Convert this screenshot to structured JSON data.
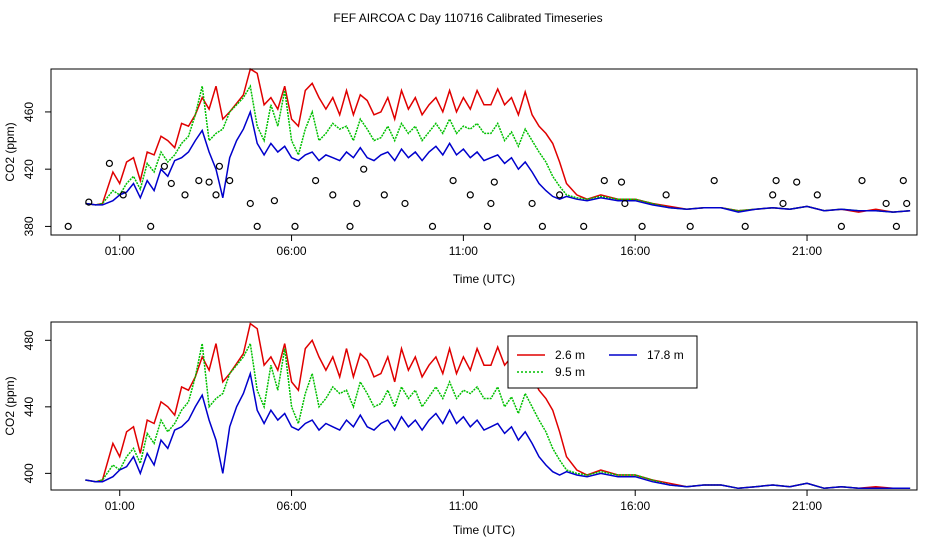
{
  "title": "FEF AIRCOA C  Day 110716  Calibrated Timeseries",
  "colors": {
    "red": "#e00000",
    "green": "#00c000",
    "blue": "#0000cc",
    "frame": "#000000"
  },
  "chart_data": [
    {
      "type": "line",
      "xlabel": "Time (UTC)",
      "ylabel": "CO2 (ppm)",
      "xlim": [
        -1.0,
        24.2
      ],
      "ylim": [
        374,
        490
      ],
      "xticks": [
        1,
        6,
        11,
        16,
        21
      ],
      "xtick_labels": [
        "01:00",
        "06:00",
        "11:00",
        "16:00",
        "21:00"
      ],
      "yticks": [
        380,
        420,
        460
      ],
      "ytick_labels": [
        "380",
        "420",
        "460"
      ],
      "series": [
        {
          "name": "2.6 m",
          "color": "#e00000",
          "x": [
            0.0,
            0.3,
            0.5,
            0.8,
            1.0,
            1.2,
            1.4,
            1.6,
            1.8,
            2.0,
            2.2,
            2.4,
            2.6,
            2.8,
            3.0,
            3.2,
            3.4,
            3.6,
            3.8,
            4.0,
            4.2,
            4.4,
            4.6,
            4.8,
            5.0,
            5.2,
            5.4,
            5.6,
            5.8,
            6.0,
            6.2,
            6.4,
            6.6,
            6.8,
            7.0,
            7.2,
            7.4,
            7.6,
            7.8,
            8.0,
            8.2,
            8.4,
            8.6,
            8.8,
            9.0,
            9.2,
            9.4,
            9.6,
            9.8,
            10.0,
            10.2,
            10.4,
            10.6,
            10.8,
            11.0,
            11.2,
            11.4,
            11.6,
            11.8,
            12.0,
            12.2,
            12.4,
            12.6,
            12.8,
            13.0,
            13.2,
            13.4,
            13.6,
            13.8,
            14.0,
            14.3,
            14.6,
            15.0,
            15.5,
            16.0,
            16.5,
            17.0,
            17.5,
            18.0,
            18.5,
            19.0,
            19.5,
            20.0,
            20.5,
            21.0,
            21.5,
            22.0,
            22.5,
            23.0,
            23.5,
            24.0
          ],
          "y": [
            396,
            395,
            396,
            418,
            410,
            425,
            428,
            412,
            432,
            430,
            443,
            440,
            435,
            452,
            450,
            458,
            470,
            462,
            478,
            455,
            460,
            466,
            472,
            490,
            487,
            465,
            470,
            462,
            478,
            455,
            450,
            475,
            480,
            470,
            462,
            470,
            458,
            475,
            458,
            472,
            468,
            458,
            460,
            470,
            455,
            475,
            462,
            470,
            458,
            465,
            470,
            460,
            475,
            460,
            470,
            462,
            475,
            465,
            465,
            476,
            465,
            470,
            458,
            474,
            458,
            450,
            445,
            438,
            425,
            410,
            402,
            399,
            402,
            399,
            399,
            396,
            394,
            392,
            393,
            393,
            391,
            392,
            393,
            392,
            394,
            391,
            392,
            390,
            392,
            390,
            391
          ]
        },
        {
          "name": "9.5 m",
          "color": "#00c000",
          "x": [
            0.0,
            0.3,
            0.5,
            0.8,
            1.0,
            1.2,
            1.4,
            1.6,
            1.8,
            2.0,
            2.2,
            2.4,
            2.6,
            2.8,
            3.0,
            3.2,
            3.4,
            3.6,
            3.8,
            4.0,
            4.2,
            4.4,
            4.6,
            4.8,
            5.0,
            5.2,
            5.4,
            5.6,
            5.8,
            6.0,
            6.2,
            6.4,
            6.6,
            6.8,
            7.0,
            7.2,
            7.4,
            7.6,
            7.8,
            8.0,
            8.2,
            8.4,
            8.6,
            8.8,
            9.0,
            9.2,
            9.4,
            9.6,
            9.8,
            10.0,
            10.2,
            10.4,
            10.6,
            10.8,
            11.0,
            11.2,
            11.4,
            11.6,
            11.8,
            12.0,
            12.2,
            12.4,
            12.6,
            12.8,
            13.0,
            13.2,
            13.4,
            13.6,
            13.8,
            14.0,
            14.3,
            14.6,
            15.0,
            15.5,
            16.0,
            16.5,
            17.0,
            17.5,
            18.0,
            18.5,
            19.0,
            19.5,
            20.0,
            20.5,
            21.0,
            21.5,
            22.0,
            22.5,
            23.0,
            23.5,
            24.0
          ],
          "y": [
            396,
            395,
            396,
            405,
            402,
            410,
            415,
            406,
            424,
            418,
            432,
            425,
            430,
            438,
            443,
            458,
            478,
            440,
            445,
            448,
            460,
            465,
            470,
            478,
            450,
            440,
            465,
            450,
            475,
            440,
            430,
            448,
            460,
            440,
            445,
            452,
            448,
            450,
            440,
            455,
            448,
            440,
            442,
            450,
            440,
            452,
            445,
            450,
            440,
            446,
            452,
            445,
            455,
            445,
            450,
            448,
            452,
            445,
            445,
            452,
            440,
            446,
            436,
            448,
            440,
            432,
            425,
            415,
            408,
            402,
            400,
            399,
            401,
            399,
            399,
            396,
            393,
            392,
            393,
            393,
            391,
            392,
            393,
            392,
            394,
            391,
            392,
            391,
            391,
            390,
            391
          ]
        },
        {
          "name": "17.8 m",
          "color": "#0000cc",
          "x": [
            0.0,
            0.3,
            0.5,
            0.8,
            1.0,
            1.2,
            1.4,
            1.6,
            1.8,
            2.0,
            2.2,
            2.4,
            2.6,
            2.8,
            3.0,
            3.2,
            3.4,
            3.6,
            3.8,
            4.0,
            4.2,
            4.4,
            4.6,
            4.8,
            5.0,
            5.2,
            5.4,
            5.6,
            5.8,
            6.0,
            6.2,
            6.4,
            6.6,
            6.8,
            7.0,
            7.2,
            7.4,
            7.6,
            7.8,
            8.0,
            8.2,
            8.4,
            8.6,
            8.8,
            9.0,
            9.2,
            9.4,
            9.6,
            9.8,
            10.0,
            10.2,
            10.4,
            10.6,
            10.8,
            11.0,
            11.2,
            11.4,
            11.6,
            11.8,
            12.0,
            12.2,
            12.4,
            12.6,
            12.8,
            13.0,
            13.2,
            13.4,
            13.6,
            13.8,
            14.0,
            14.3,
            14.6,
            15.0,
            15.5,
            16.0,
            16.5,
            17.0,
            17.5,
            18.0,
            18.5,
            19.0,
            19.5,
            20.0,
            20.5,
            21.0,
            21.5,
            22.0,
            22.5,
            23.0,
            23.5,
            24.0
          ],
          "y": [
            396,
            395,
            395,
            398,
            402,
            404,
            410,
            400,
            412,
            405,
            420,
            415,
            426,
            428,
            432,
            440,
            447,
            432,
            420,
            400,
            428,
            440,
            448,
            460,
            438,
            430,
            438,
            432,
            436,
            428,
            426,
            430,
            432,
            426,
            430,
            428,
            426,
            432,
            428,
            435,
            428,
            426,
            430,
            432,
            426,
            434,
            428,
            432,
            426,
            432,
            436,
            430,
            438,
            430,
            434,
            428,
            432,
            426,
            428,
            430,
            424,
            428,
            420,
            425,
            418,
            410,
            405,
            401,
            399,
            401,
            399,
            398,
            400,
            398,
            398,
            395,
            393,
            392,
            393,
            393,
            390,
            392,
            393,
            392,
            394,
            391,
            392,
            391,
            391,
            390,
            391
          ]
        }
      ],
      "flag_circles": {
        "x": [
          -0.5,
          0.1,
          0.7,
          1.1,
          1.9,
          2.3,
          2.5,
          2.9,
          3.3,
          3.6,
          3.8,
          3.9,
          4.2,
          4.8,
          5.0,
          5.5,
          6.1,
          6.7,
          7.2,
          7.7,
          7.9,
          8.1,
          8.7,
          9.3,
          10.1,
          10.7,
          11.2,
          11.7,
          11.8,
          11.9,
          13.0,
          13.3,
          13.8,
          14.5,
          15.1,
          15.6,
          15.7,
          16.2,
          16.9,
          17.6,
          18.3,
          19.2,
          20.0,
          20.1,
          20.3,
          20.7,
          21.3,
          22.0,
          22.6,
          23.3,
          23.6,
          23.8,
          23.9
        ],
        "y": [
          380,
          397,
          424,
          402,
          380,
          422,
          410,
          402,
          412,
          411,
          402,
          422,
          412,
          396,
          380,
          398,
          380,
          412,
          402,
          380,
          396,
          420,
          402,
          396,
          380,
          412,
          402,
          380,
          396,
          411,
          396,
          380,
          402,
          380,
          412,
          411,
          396,
          380,
          402,
          380,
          412,
          380,
          402,
          412,
          396,
          411,
          402,
          380,
          412,
          396,
          380,
          412,
          396
        ]
      }
    },
    {
      "type": "line",
      "xlabel": "Time (UTC)",
      "ylabel": "CO2 (ppm)",
      "xlim": [
        -1.0,
        24.2
      ],
      "ylim": [
        390,
        491
      ],
      "xticks": [
        1,
        6,
        11,
        16,
        21
      ],
      "xtick_labels": [
        "01:00",
        "06:00",
        "11:00",
        "16:00",
        "21:00"
      ],
      "yticks": [
        400,
        440,
        480
      ],
      "ytick_labels": [
        "400",
        "440",
        "480"
      ],
      "legend": {
        "entries": [
          {
            "name": "2.6 m",
            "color": "#e00000"
          },
          {
            "name": "17.8 m",
            "color": "#0000cc"
          },
          {
            "name": "9.5 m",
            "color": "#00c000"
          }
        ]
      }
    }
  ]
}
